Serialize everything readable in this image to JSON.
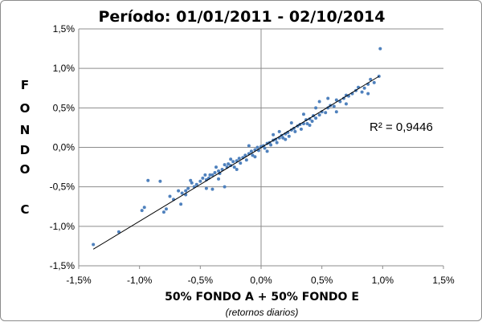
{
  "chart_data": {
    "type": "scatter",
    "title": "Período: 01/01/2011 - 02/10/2014",
    "ylabel_letters": [
      "F",
      "O",
      "N",
      "D",
      "O",
      "C"
    ],
    "xlabel": "50% FONDO A  +  50% FONDO E",
    "xlabel_sub": "(retornos diarios)",
    "xlim": [
      -1.5,
      1.5
    ],
    "ylim": [
      -1.5,
      1.5
    ],
    "x_ticks": [
      -1.5,
      -1.0,
      -0.5,
      0.0,
      0.5,
      1.0,
      1.5
    ],
    "y_ticks": [
      -1.5,
      -1.0,
      -0.5,
      0.0,
      0.5,
      1.0,
      1.5
    ],
    "x_tick_labels": [
      "-1,5%",
      "-1,0%",
      "-0,5%",
      "0,0%",
      "0,5%",
      "1,0%",
      "1,5%"
    ],
    "y_tick_labels": [
      "-1,5%",
      "-1,0%",
      "-0,5%",
      "0,0%",
      "0,5%",
      "1,0%",
      "1,5%"
    ],
    "grid": "horizontal",
    "point_color": "#4f81bd",
    "trendline": {
      "x": [
        -1.38,
        0.97
      ],
      "y": [
        -1.29,
        0.9
      ],
      "color": "#000000"
    },
    "r_squared_label": "R² = 0,9446",
    "points": [
      [
        -1.38,
        -1.23
      ],
      [
        -1.17,
        -1.07
      ],
      [
        -0.98,
        -0.8
      ],
      [
        -0.96,
        -0.76
      ],
      [
        -0.93,
        -0.42
      ],
      [
        -0.83,
        -0.43
      ],
      [
        -0.8,
        -0.82
      ],
      [
        -0.78,
        -0.78
      ],
      [
        -0.75,
        -0.62
      ],
      [
        -0.72,
        -0.66
      ],
      [
        -0.68,
        -0.55
      ],
      [
        -0.66,
        -0.72
      ],
      [
        -0.65,
        -0.58
      ],
      [
        -0.62,
        -0.55
      ],
      [
        -0.6,
        -0.52
      ],
      [
        -0.58,
        -0.42
      ],
      [
        -0.57,
        -0.45
      ],
      [
        -0.55,
        -0.5
      ],
      [
        -0.53,
        -0.47
      ],
      [
        -0.5,
        -0.43
      ],
      [
        -0.48,
        -0.39
      ],
      [
        -0.46,
        -0.35
      ],
      [
        -0.45,
        -0.41
      ],
      [
        -0.43,
        -0.39
      ],
      [
        -0.42,
        -0.35
      ],
      [
        -0.4,
        -0.35
      ],
      [
        -0.4,
        -0.53
      ],
      [
        -0.38,
        -0.32
      ],
      [
        -0.37,
        -0.25
      ],
      [
        -0.35,
        -0.3
      ],
      [
        -0.34,
        -0.33
      ],
      [
        -0.32,
        -0.28
      ],
      [
        -0.3,
        -0.22
      ],
      [
        -0.3,
        -0.5
      ],
      [
        -0.28,
        -0.25
      ],
      [
        -0.27,
        -0.21
      ],
      [
        -0.25,
        -0.23
      ],
      [
        -0.23,
        -0.18
      ],
      [
        -0.22,
        -0.25
      ],
      [
        -0.2,
        -0.17
      ],
      [
        -0.18,
        -0.14
      ],
      [
        -0.17,
        -0.2
      ],
      [
        -0.15,
        -0.13
      ],
      [
        -0.13,
        -0.1
      ],
      [
        -0.12,
        -0.16
      ],
      [
        -0.1,
        -0.08
      ],
      [
        -0.08,
        -0.05
      ],
      [
        -0.07,
        -0.1
      ],
      [
        -0.05,
        -0.03
      ],
      [
        -0.03,
        0.0
      ],
      [
        -0.02,
        -0.04
      ],
      [
        0.0,
        0.01
      ],
      [
        0.02,
        0.02
      ],
      [
        0.03,
        -0.01
      ],
      [
        0.05,
        0.05
      ],
      [
        0.07,
        0.06
      ],
      [
        0.08,
        0.03
      ],
      [
        0.1,
        0.09
      ],
      [
        0.12,
        0.1
      ],
      [
        0.13,
        0.06
      ],
      [
        0.15,
        0.12
      ],
      [
        0.17,
        0.15
      ],
      [
        0.18,
        0.12
      ],
      [
        0.2,
        0.17
      ],
      [
        0.22,
        0.19
      ],
      [
        0.23,
        0.14
      ],
      [
        0.25,
        0.22
      ],
      [
        0.27,
        0.24
      ],
      [
        0.28,
        0.2
      ],
      [
        0.3,
        0.27
      ],
      [
        0.32,
        0.29
      ],
      [
        0.33,
        0.23
      ],
      [
        0.35,
        0.3
      ],
      [
        0.37,
        0.35
      ],
      [
        0.38,
        0.3
      ],
      [
        0.4,
        0.36
      ],
      [
        0.42,
        0.33
      ],
      [
        0.43,
        0.4
      ],
      [
        0.45,
        0.37
      ],
      [
        0.48,
        0.41
      ],
      [
        0.5,
        0.45
      ],
      [
        0.53,
        0.44
      ],
      [
        0.55,
        0.5
      ],
      [
        0.57,
        0.53
      ],
      [
        0.6,
        0.52
      ],
      [
        0.62,
        0.6
      ],
      [
        0.65,
        0.58
      ],
      [
        0.68,
        0.62
      ],
      [
        0.7,
        0.55
      ],
      [
        0.72,
        0.65
      ],
      [
        0.75,
        0.68
      ],
      [
        0.78,
        0.72
      ],
      [
        0.8,
        0.76
      ],
      [
        0.83,
        0.7
      ],
      [
        0.85,
        0.75
      ],
      [
        0.88,
        0.8
      ],
      [
        0.9,
        0.86
      ],
      [
        0.93,
        0.82
      ],
      [
        0.97,
        0.9
      ],
      [
        0.98,
        1.25
      ],
      [
        0.88,
        0.68
      ],
      [
        0.48,
        0.58
      ],
      [
        0.55,
        0.62
      ],
      [
        -0.45,
        -0.52
      ],
      [
        -0.2,
        -0.28
      ],
      [
        0.1,
        0.16
      ],
      [
        0.4,
        0.28
      ],
      [
        0.62,
        0.45
      ],
      [
        -0.62,
        -0.6
      ],
      [
        0.25,
        0.31
      ],
      [
        -0.35,
        -0.4
      ],
      [
        0.05,
        -0.05
      ],
      [
        -0.1,
        0.02
      ],
      [
        0.35,
        0.42
      ],
      [
        0.15,
        0.2
      ],
      [
        -0.25,
        -0.15
      ],
      [
        0.45,
        0.5
      ],
      [
        0.7,
        0.66
      ],
      [
        0.2,
        0.1
      ],
      [
        -0.05,
        -0.12
      ]
    ]
  }
}
